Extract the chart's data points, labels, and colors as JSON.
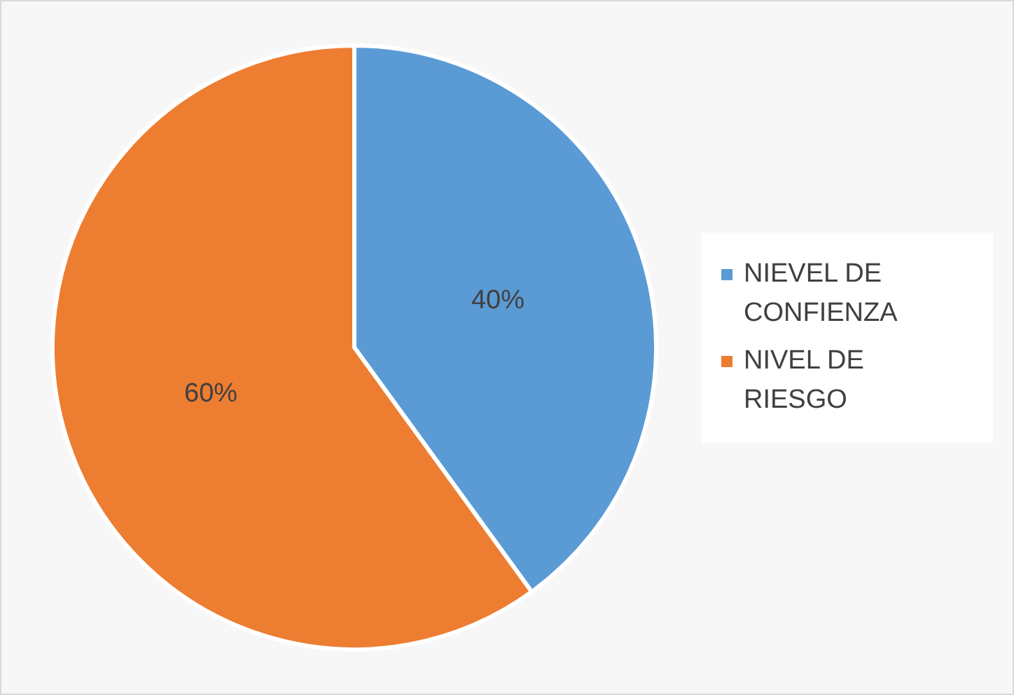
{
  "chart_data": {
    "type": "pie",
    "categories": [
      "NIEVEL DE CONFIENZA",
      "NIVEL DE RIESGO"
    ],
    "values": [
      40,
      60
    ],
    "colors": [
      "#5b9bd5",
      "#ed7d31"
    ],
    "value_labels": [
      "40%",
      "60%"
    ],
    "legend": "right"
  }
}
